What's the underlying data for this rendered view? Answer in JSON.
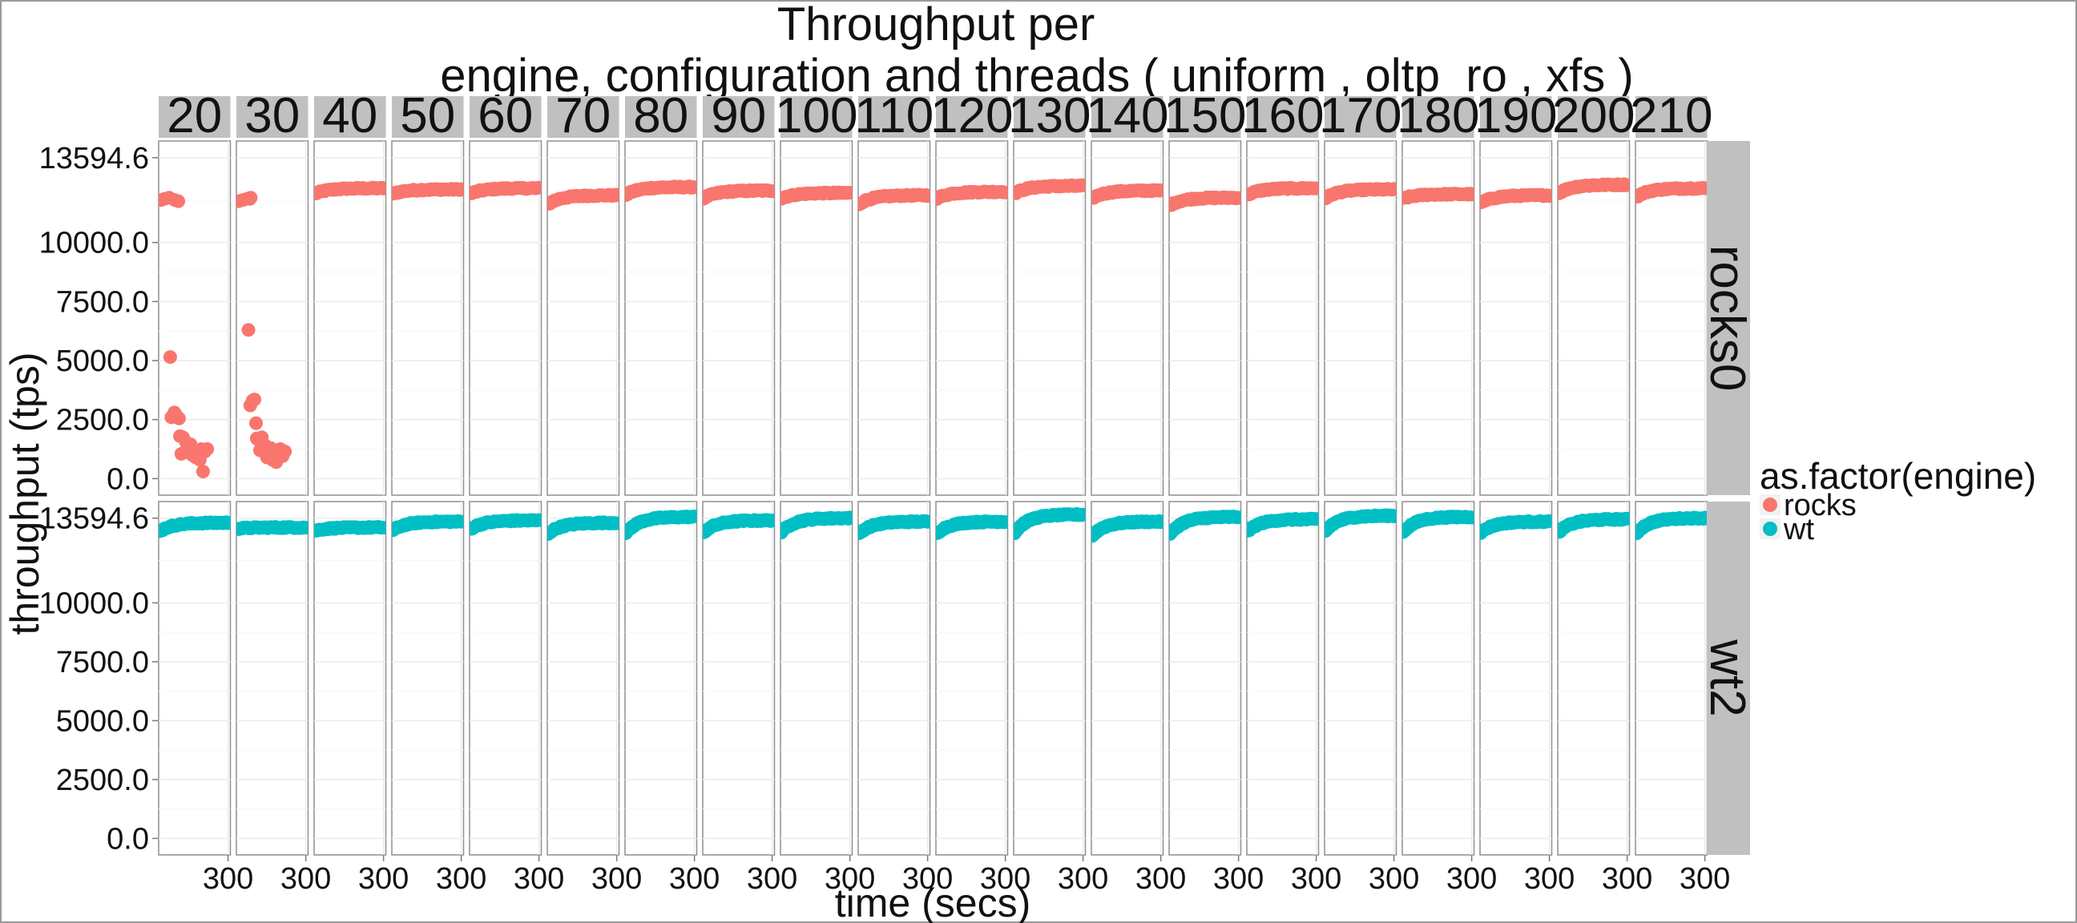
{
  "chart_data": {
    "type": "scatter",
    "title": [
      "Throughput per",
      "engine, configuration and threads ( uniform , oltp_ro , xfs )"
    ],
    "xlabel": "time (secs)",
    "ylabel": "throughput (tps)",
    "x_range": [
      0,
      310
    ],
    "x_ticks": [
      300
    ],
    "y_range": [
      -700,
      14300
    ],
    "y_ticks": [
      0.0,
      2500.0,
      5000.0,
      7500.0,
      10000.0,
      13594.6
    ],
    "y_tick_labels": [
      "0.0",
      "2500.0",
      "5000.0",
      "7500.0",
      "10000.0",
      "13594.6"
    ],
    "facet_columns": [
      "20",
      "30",
      "40",
      "50",
      "60",
      "70",
      "80",
      "90",
      "100",
      "110",
      "120",
      "130",
      "140",
      "150",
      "160",
      "170",
      "180",
      "190",
      "200",
      "210"
    ],
    "facet_rows": [
      "rocks0",
      "wt2"
    ],
    "legend": {
      "title": "as.factor(engine)",
      "position": "right",
      "entries": [
        {
          "label": "rocks",
          "color": "#F8766D"
        },
        {
          "label": "wt",
          "color": "#00BFC4"
        }
      ]
    },
    "series": [
      {
        "name": "rocks",
        "row": "rocks0",
        "color": "#F8766D",
        "steady_levels": [
          [
            11800,
            11900
          ],
          [
            11800,
            11850
          ],
          [
            12050,
            12300
          ],
          [
            12050,
            12250
          ],
          [
            12050,
            12300
          ],
          [
            11600,
            12000
          ],
          [
            12000,
            12350
          ],
          [
            11850,
            12200
          ],
          [
            11850,
            12100
          ],
          [
            11600,
            12000
          ],
          [
            11850,
            12150
          ],
          [
            12050,
            12400
          ],
          [
            11850,
            12200
          ],
          [
            11550,
            11900
          ],
          [
            12000,
            12300
          ],
          [
            11850,
            12250
          ],
          [
            11850,
            12050
          ],
          [
            11650,
            12000
          ],
          [
            12050,
            12450
          ],
          [
            11900,
            12300
          ]
        ],
        "collapse_points": {
          "20": [
            [
              10,
              11800
            ],
            [
              25,
              11850
            ],
            [
              45,
              11900
            ],
            [
              70,
              11800
            ],
            [
              85,
              11750
            ],
            [
              50,
              5150
            ],
            [
              55,
              2600
            ],
            [
              68,
              2800
            ],
            [
              75,
              2700
            ],
            [
              88,
              2550
            ],
            [
              92,
              1800
            ],
            [
              98,
              1050
            ],
            [
              105,
              1750
            ],
            [
              118,
              1550
            ],
            [
              125,
              1300
            ],
            [
              138,
              1450
            ],
            [
              145,
              1000
            ],
            [
              152,
              1200
            ],
            [
              160,
              900
            ],
            [
              168,
              1100
            ],
            [
              178,
              800
            ],
            [
              185,
              1250
            ],
            [
              192,
              300
            ],
            [
              200,
              1150
            ],
            [
              210,
              1250
            ]
          ],
          "30": [
            [
              10,
              11750
            ],
            [
              28,
              11800
            ],
            [
              45,
              11850
            ],
            [
              58,
              11850
            ],
            [
              62,
              11900
            ],
            [
              52,
              6300
            ],
            [
              60,
              3100
            ],
            [
              70,
              3300
            ],
            [
              78,
              3350
            ],
            [
              85,
              2350
            ],
            [
              88,
              1700
            ],
            [
              95,
              1650
            ],
            [
              102,
              1200
            ],
            [
              110,
              1750
            ],
            [
              118,
              1150
            ],
            [
              125,
              1400
            ],
            [
              132,
              900
            ],
            [
              140,
              1100
            ],
            [
              148,
              1300
            ],
            [
              155,
              800
            ],
            [
              165,
              1200
            ],
            [
              172,
              700
            ],
            [
              180,
              1100
            ],
            [
              190,
              1250
            ],
            [
              200,
              950
            ],
            [
              210,
              1150
            ]
          ]
        }
      },
      {
        "name": "wt",
        "row": "wt2",
        "color": "#00BFC4",
        "steady_levels": [
          [
            13000,
            13400
          ],
          [
            13150,
            13200
          ],
          [
            13050,
            13200
          ],
          [
            13050,
            13450
          ],
          [
            13100,
            13500
          ],
          [
            12900,
            13400
          ],
          [
            12900,
            13650
          ],
          [
            12950,
            13500
          ],
          [
            12950,
            13600
          ],
          [
            12900,
            13450
          ],
          [
            12900,
            13450
          ],
          [
            12900,
            13750
          ],
          [
            12800,
            13450
          ],
          [
            12850,
            13650
          ],
          [
            13000,
            13550
          ],
          [
            13000,
            13700
          ],
          [
            12950,
            13650
          ],
          [
            12950,
            13450
          ],
          [
            12950,
            13550
          ],
          [
            12900,
            13600
          ]
        ]
      }
    ]
  }
}
